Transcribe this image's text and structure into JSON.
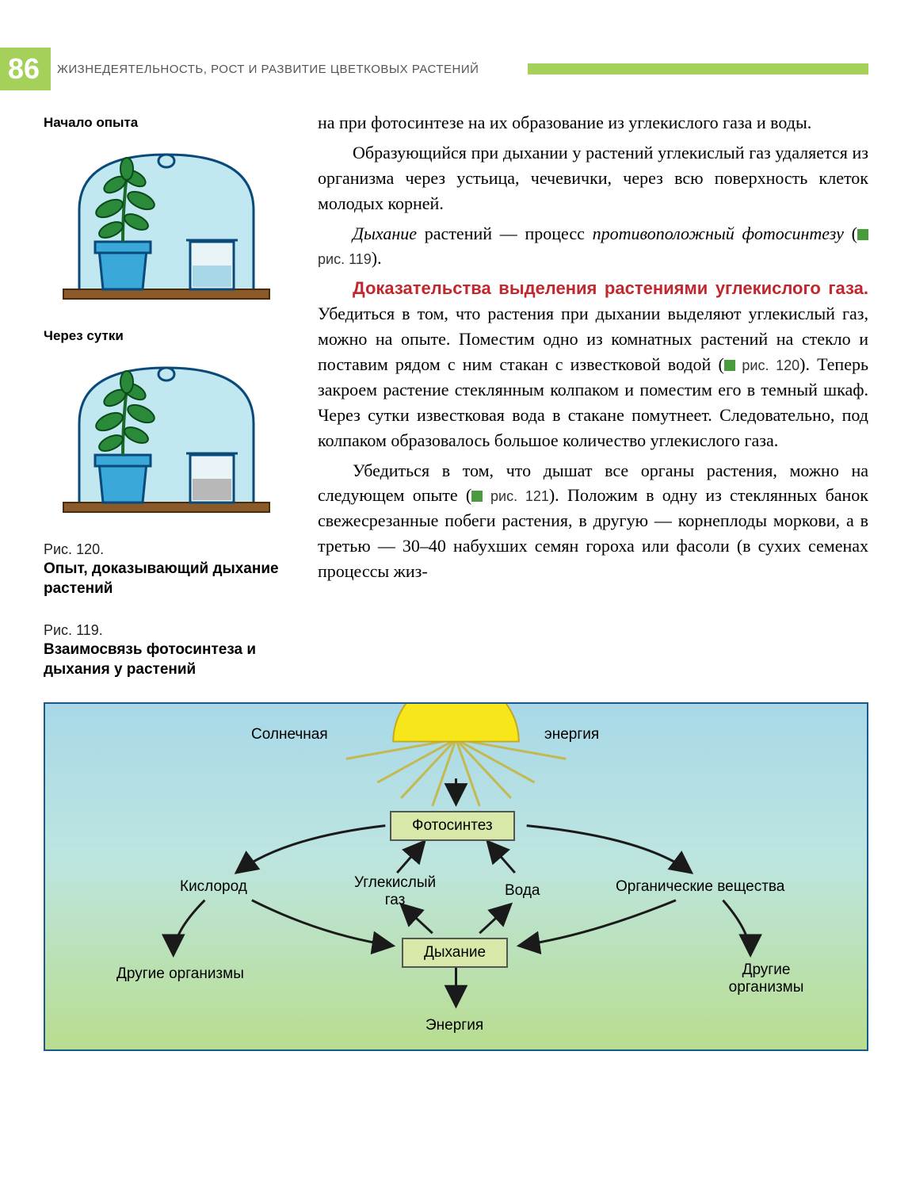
{
  "page_number": "86",
  "chapter_title": "ЖИЗНЕДЕЯТЕЛЬНОСТЬ, РОСТ И РАЗВИТИЕ ЦВЕТКОВЫХ РАСТЕНИЙ",
  "experiment": {
    "label_start": "Начало опыта",
    "label_after": "Через сутки"
  },
  "fig120": {
    "ref": "Рис. 120.",
    "title": "Опыт, доказывающий дыхание растений"
  },
  "fig119": {
    "ref": "Рис. 119.",
    "title": "Взаимосвязь фотосинтеза и дыхания у растений"
  },
  "text": {
    "p1": "на при фотосинтезе на их образование из углекислого газа и воды.",
    "p2": "Образующийся при дыхании у растений углекислый газ удаляется из организма через устьица, чечевички, через всю поверхность клеток молодых корней.",
    "p3a": "Дыхание",
    "p3b": " растений — процесс ",
    "p3c": "противоположный фотосинтезу",
    "p3d": " (",
    "p3e": " рис. 119",
    "p3f": ").",
    "p4head": "Доказательства выделения растениями углекислого газа.",
    "p4": " Убедиться в том, что растения при дыхании выделяют углекислый газ, можно на опыте. Поместим одно из комнатных растений на стекло и поставим рядом с ним стакан с известковой водой (",
    "p4r": " рис. 120",
    "p4b": "). Теперь закроем растение стеклянным колпаком и поместим его в темный шкаф. Через сутки известковая вода в стакане помутнеет. Следовательно, под колпаком образовалось большое количество углекислого газа.",
    "p5": "Убедиться в том, что дышат все органы растения, можно на следующем опыте (",
    "p5r": " рис. 121",
    "p5b": "). Положим в одну из стеклянных банок свежесрезанные побеги растения, в другую — корнеплоды моркови, а в третью — 30–40 набухших семян гороха или фасоли (в сухих семенах процессы жиз-"
  },
  "diagram": {
    "sun_left": "Солнечная",
    "sun_right": "энергия",
    "photosynthesis": "Фотосинтез",
    "respiration": "Дыхание",
    "oxygen": "Кислород",
    "co2": "Углекислый газ",
    "water": "Вода",
    "organic": "Органические вещества",
    "other_org": "Другие организмы",
    "other_org2": "Другие организмы",
    "energy": "Энергия",
    "colors": {
      "border": "#1a5a8a",
      "bg_top": "#a8d8e8",
      "bg_bottom": "#b8dd8f",
      "sun": "#f7e61a",
      "box_bg": "#d8e8a8",
      "arrow": "#1a1a1a"
    }
  }
}
